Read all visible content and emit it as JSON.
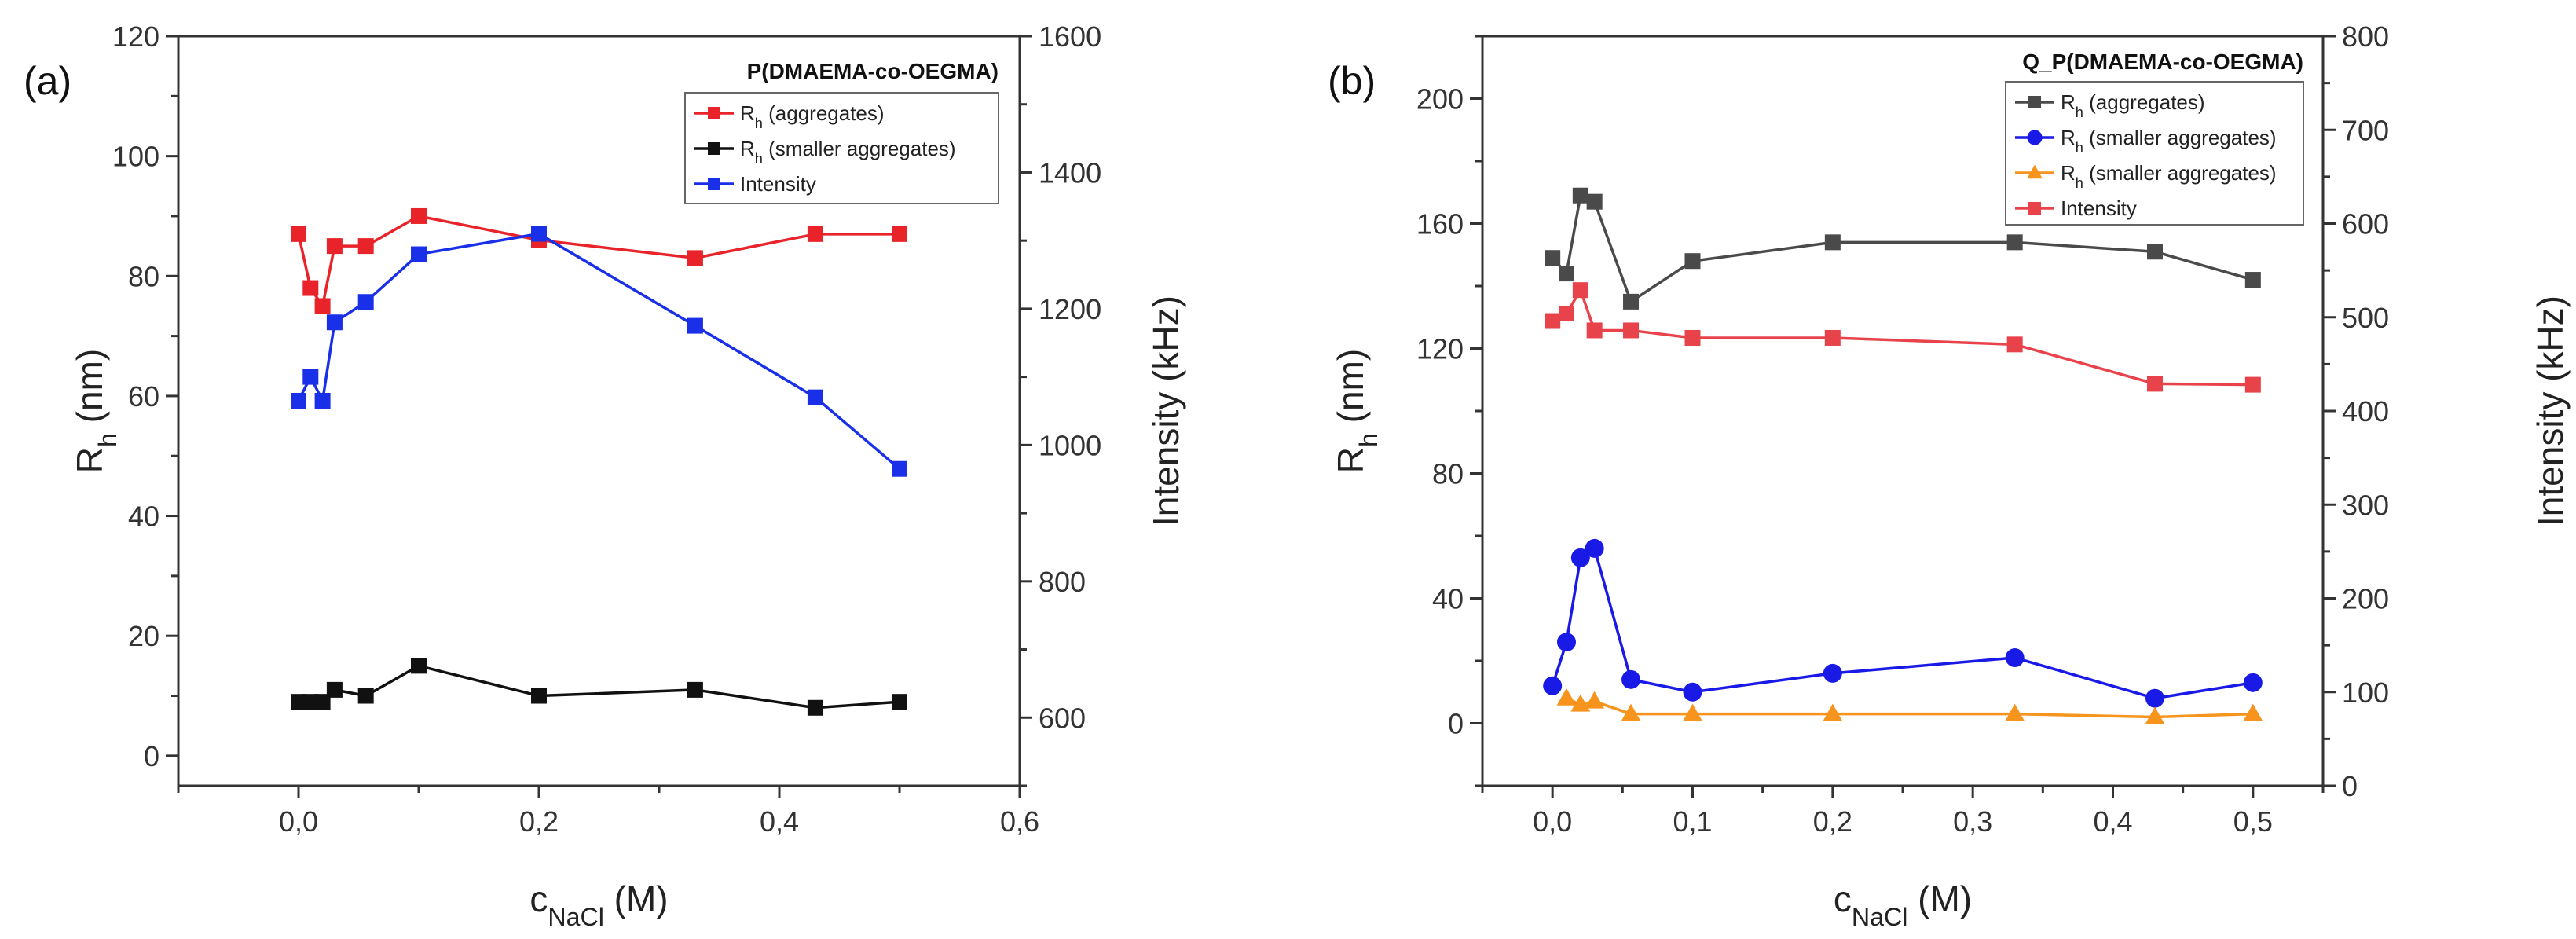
{
  "chart_data": [
    {
      "type": "line",
      "panel_label": "(a)",
      "title": "P(DMAEMA-co-OEGMA)",
      "xlabel": "c",
      "xlabel_sub": "NaCl",
      "xlabel_unit": " (M)",
      "ylabel": "R",
      "ylabel_sub": "h",
      "ylabel_unit": " (nm)",
      "y2label": "Intensity (kHz)",
      "xlim": [
        -0.1,
        0.6
      ],
      "ylim": [
        -5,
        120
      ],
      "y2lim": [
        500,
        1600
      ],
      "xticks": [
        0,
        0.2,
        0.4,
        0.6
      ],
      "xtick_labels": [
        "0,0",
        "0,2",
        "0,4",
        "0,6"
      ],
      "yticks": [
        0,
        20,
        40,
        60,
        80,
        100,
        120
      ],
      "ytick_labels": [
        "0",
        "20",
        "40",
        "60",
        "80",
        "100",
        "120"
      ],
      "y2ticks": [
        600,
        800,
        1000,
        1200,
        1400,
        1600
      ],
      "y2tick_labels": [
        "600",
        "800",
        "1000",
        "1200",
        "1400",
        "1600"
      ],
      "legend_position": "top-right",
      "series": [
        {
          "name": "R",
          "name_sub": "h",
          "name_rest": " (aggregates)",
          "color": "#e8242a",
          "marker": "square",
          "axis": "left",
          "x": [
            0,
            0.01,
            0.02,
            0.03,
            0.056,
            0.1,
            0.2,
            0.33,
            0.43,
            0.5
          ],
          "y": [
            87,
            78,
            75,
            85,
            85,
            90,
            86,
            83,
            87,
            87
          ]
        },
        {
          "name": "R",
          "name_sub": "h",
          "name_rest": " (smaller aggregates)",
          "color": "#111111",
          "marker": "square",
          "axis": "left",
          "x": [
            0,
            0.01,
            0.02,
            0.03,
            0.056,
            0.1,
            0.2,
            0.33,
            0.43,
            0.5
          ],
          "y": [
            9,
            9,
            9,
            11,
            10,
            15,
            10,
            11,
            8,
            9
          ]
        },
        {
          "name": "Intensity",
          "name_sub": "",
          "name_rest": "",
          "color": "#1a2fe8",
          "marker": "square",
          "axis": "right",
          "x": [
            0,
            0.01,
            0.02,
            0.03,
            0.056,
            0.1,
            0.2,
            0.33,
            0.43,
            0.5
          ],
          "y": [
            1065,
            1100,
            1065,
            1180,
            1210,
            1280,
            1310,
            1175,
            1070,
            965
          ]
        }
      ]
    },
    {
      "type": "line",
      "panel_label": "(b)",
      "title": "Q_P(DMAEMA-co-OEGMA)",
      "xlabel": "c",
      "xlabel_sub": "NaCl",
      "xlabel_unit": " (M)",
      "ylabel": "R",
      "ylabel_sub": "h",
      "ylabel_unit": " (nm)",
      "y2label": "Intensity (kHz)",
      "xlim": [
        -0.05,
        0.55
      ],
      "ylim": [
        -20,
        220
      ],
      "y2lim": [
        0,
        800
      ],
      "xticks": [
        0,
        0.1,
        0.2,
        0.3,
        0.4,
        0.5
      ],
      "xtick_labels": [
        "0,0",
        "0,1",
        "0,2",
        "0,3",
        "0,4",
        "0,5"
      ],
      "yticks": [
        0,
        40,
        80,
        120,
        160,
        200
      ],
      "ytick_labels": [
        "0",
        "40",
        "80",
        "120",
        "160",
        "200"
      ],
      "y2ticks": [
        0,
        100,
        200,
        300,
        400,
        500,
        600,
        700,
        800
      ],
      "y2tick_labels": [
        "0",
        "100",
        "200",
        "300",
        "400",
        "500",
        "600",
        "700",
        "800"
      ],
      "legend_position": "top-right",
      "series": [
        {
          "name": "R",
          "name_sub": "h",
          "name_rest": " (aggregates)",
          "color": "#4a4a4a",
          "marker": "square",
          "axis": "left",
          "x": [
            0,
            0.01,
            0.02,
            0.03,
            0.056,
            0.1,
            0.2,
            0.33,
            0.43,
            0.5
          ],
          "y": [
            149,
            144,
            169,
            167,
            135,
            148,
            154,
            154,
            151,
            142
          ]
        },
        {
          "name": "R",
          "name_sub": "h",
          "name_rest": " (smaller aggregates)",
          "color": "#1a1ae6",
          "marker": "circle",
          "axis": "left",
          "x": [
            0,
            0.01,
            0.02,
            0.03,
            0.056,
            0.1,
            0.2,
            0.33,
            0.43,
            0.5
          ],
          "y": [
            12,
            26,
            53,
            56,
            14,
            10,
            16,
            21,
            8,
            13
          ]
        },
        {
          "name": "R",
          "name_sub": "h",
          "name_rest": " (smaller aggregates)",
          "color": "#f7941d",
          "marker": "triangle",
          "axis": "left",
          "x": [
            0.01,
            0.02,
            0.03,
            0.056,
            0.1,
            0.2,
            0.33,
            0.43,
            0.5
          ],
          "y": [
            8,
            6,
            7,
            3,
            3,
            3,
            3,
            2,
            3
          ]
        },
        {
          "name": "Intensity",
          "name_sub": "",
          "name_rest": "",
          "color": "#e8434a",
          "marker": "square",
          "axis": "right",
          "x": [
            0,
            0.01,
            0.02,
            0.03,
            0.056,
            0.1,
            0.2,
            0.33,
            0.43,
            0.5
          ],
          "y": [
            496,
            504,
            529,
            486,
            486,
            478,
            478,
            471,
            429,
            428
          ]
        }
      ]
    }
  ]
}
